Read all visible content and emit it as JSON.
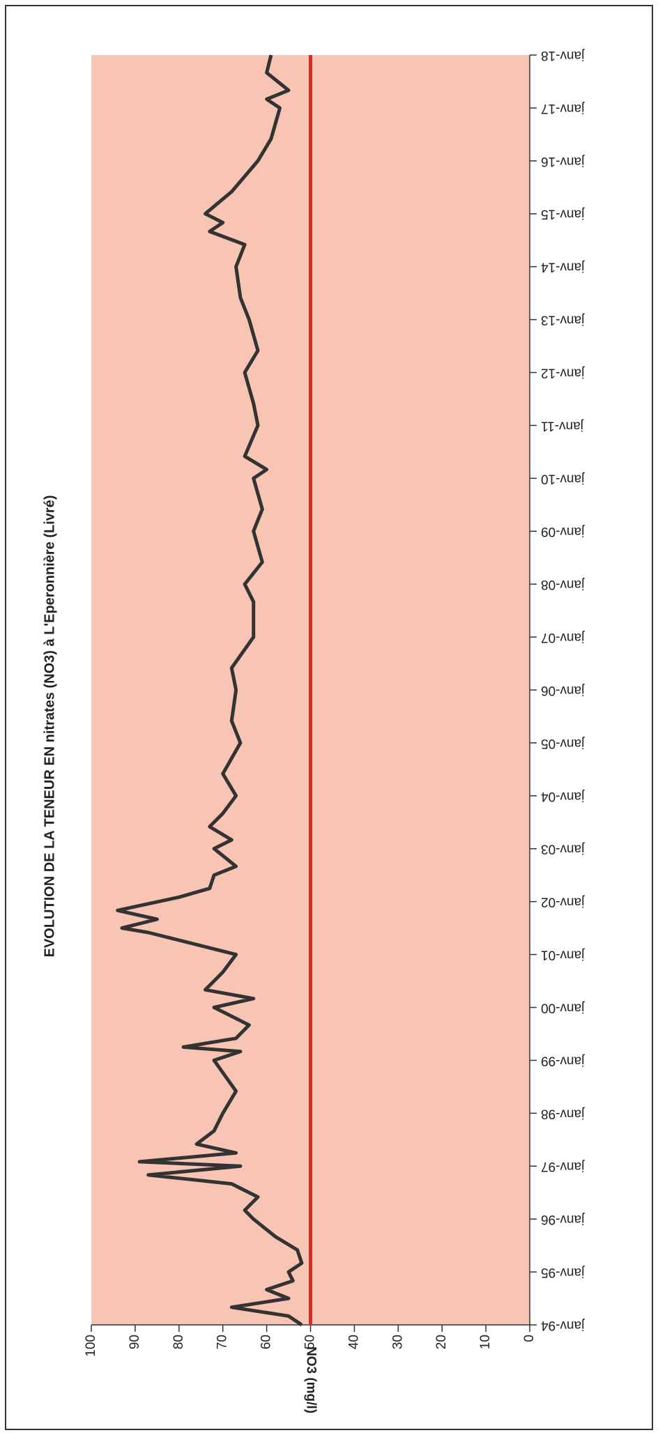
{
  "chart_data": {
    "type": "line",
    "title": "EVOLUTION  DE LA TENEUR  EN nitrates (NO3) à L'Eperonnière (Livré)",
    "y_label": "NO3 (mg/l)",
    "series": [
      {
        "color": "#333333",
        "x": [
          "1994-01",
          "1994-03",
          "1994-05",
          "1994-07",
          "1994-09",
          "1994-11",
          "1995-01",
          "1995-03",
          "1995-06",
          "1995-09",
          "1996-01",
          "1996-03",
          "1996-06",
          "1996-09",
          "1996-11",
          "1997-01",
          "1997-02",
          "1997-04",
          "1997-06",
          "1997-09",
          "1998-01",
          "1998-06",
          "1999-01",
          "1999-03",
          "1999-04",
          "1999-06",
          "1999-09",
          "2000-01",
          "2000-03",
          "2000-05",
          "2000-09",
          "2001-01",
          "2001-06",
          "2001-07",
          "2001-09",
          "2001-11",
          "2002-02",
          "2002-04",
          "2002-07",
          "2002-09",
          "2003-01",
          "2003-03",
          "2003-06",
          "2003-09",
          "2004-01",
          "2004-06",
          "2005-01",
          "2005-06",
          "2006-01",
          "2006-06",
          "2007-01",
          "2007-09",
          "2008-01",
          "2008-06",
          "2009-01",
          "2009-06",
          "2010-01",
          "2010-03",
          "2010-06",
          "2011-01",
          "2011-06",
          "2012-01",
          "2012-06",
          "2013-01",
          "2013-06",
          "2014-01",
          "2014-06",
          "2014-09",
          "2014-11",
          "2015-01",
          "2015-06",
          "2016-01",
          "2016-06",
          "2017-01",
          "2017-03",
          "2017-05",
          "2017-09",
          "2018-01"
        ],
        "values": [
          52,
          55,
          68,
          55,
          60,
          54,
          55,
          52,
          53,
          58,
          63,
          65,
          62,
          68,
          87,
          66,
          89,
          67,
          76,
          72,
          70,
          67,
          72,
          66,
          79,
          67,
          64,
          72,
          63,
          74,
          70,
          67,
          87,
          93,
          85,
          94,
          80,
          73,
          72,
          67,
          72,
          68,
          73,
          70,
          67,
          70,
          66,
          68,
          67,
          68,
          63,
          63,
          65,
          61,
          63,
          61,
          63,
          60,
          65,
          62,
          63,
          65,
          62,
          64,
          66,
          67,
          65,
          73,
          70,
          74,
          68,
          62,
          59,
          57,
          60,
          55,
          60,
          59
        ]
      },
      {
        "color": "#e0281e",
        "x": [
          "1994-01",
          "2018-01"
        ],
        "values": [
          50,
          50
        ]
      }
    ],
    "xlim": [
      "1994-01",
      "2018-01"
    ],
    "xticks": [
      {
        "value": "1994-01",
        "label": "janv-94"
      },
      {
        "value": "1995-01",
        "label": "janv-95"
      },
      {
        "value": "1996-01",
        "label": "janv-96"
      },
      {
        "value": "1997-01",
        "label": "janv-97"
      },
      {
        "value": "1998-01",
        "label": "janv-98"
      },
      {
        "value": "1999-01",
        "label": "janv-99"
      },
      {
        "value": "2000-01",
        "label": "janv-00"
      },
      {
        "value": "2001-01",
        "label": "janv-01"
      },
      {
        "value": "2002-01",
        "label": "janv-02"
      },
      {
        "value": "2003-01",
        "label": "janv-03"
      },
      {
        "value": "2004-01",
        "label": "janv-04"
      },
      {
        "value": "2005-01",
        "label": "janv-05"
      },
      {
        "value": "2006-01",
        "label": "janv-06"
      },
      {
        "value": "2007-01",
        "label": "janv-07"
      },
      {
        "value": "2008-01",
        "label": "janv-08"
      },
      {
        "value": "2009-01",
        "label": "janv-09"
      },
      {
        "value": "2010-01",
        "label": "janv-10"
      },
      {
        "value": "2011-01",
        "label": "janv-11"
      },
      {
        "value": "2012-01",
        "label": "janv-12"
      },
      {
        "value": "2013-01",
        "label": "janv-13"
      },
      {
        "value": "2014-01",
        "label": "janv-14"
      },
      {
        "value": "2015-01",
        "label": "janv-15"
      },
      {
        "value": "2016-01",
        "label": "janv-16"
      },
      {
        "value": "2017-01",
        "label": "janv-17"
      },
      {
        "value": "2018-01",
        "label": "janv-18"
      }
    ],
    "ylim": [
      0,
      100
    ],
    "yticks": [
      0,
      10,
      20,
      30,
      40,
      50,
      60,
      70,
      80,
      90,
      100
    ],
    "plot_background": "#f8c4b4",
    "grid": false
  }
}
